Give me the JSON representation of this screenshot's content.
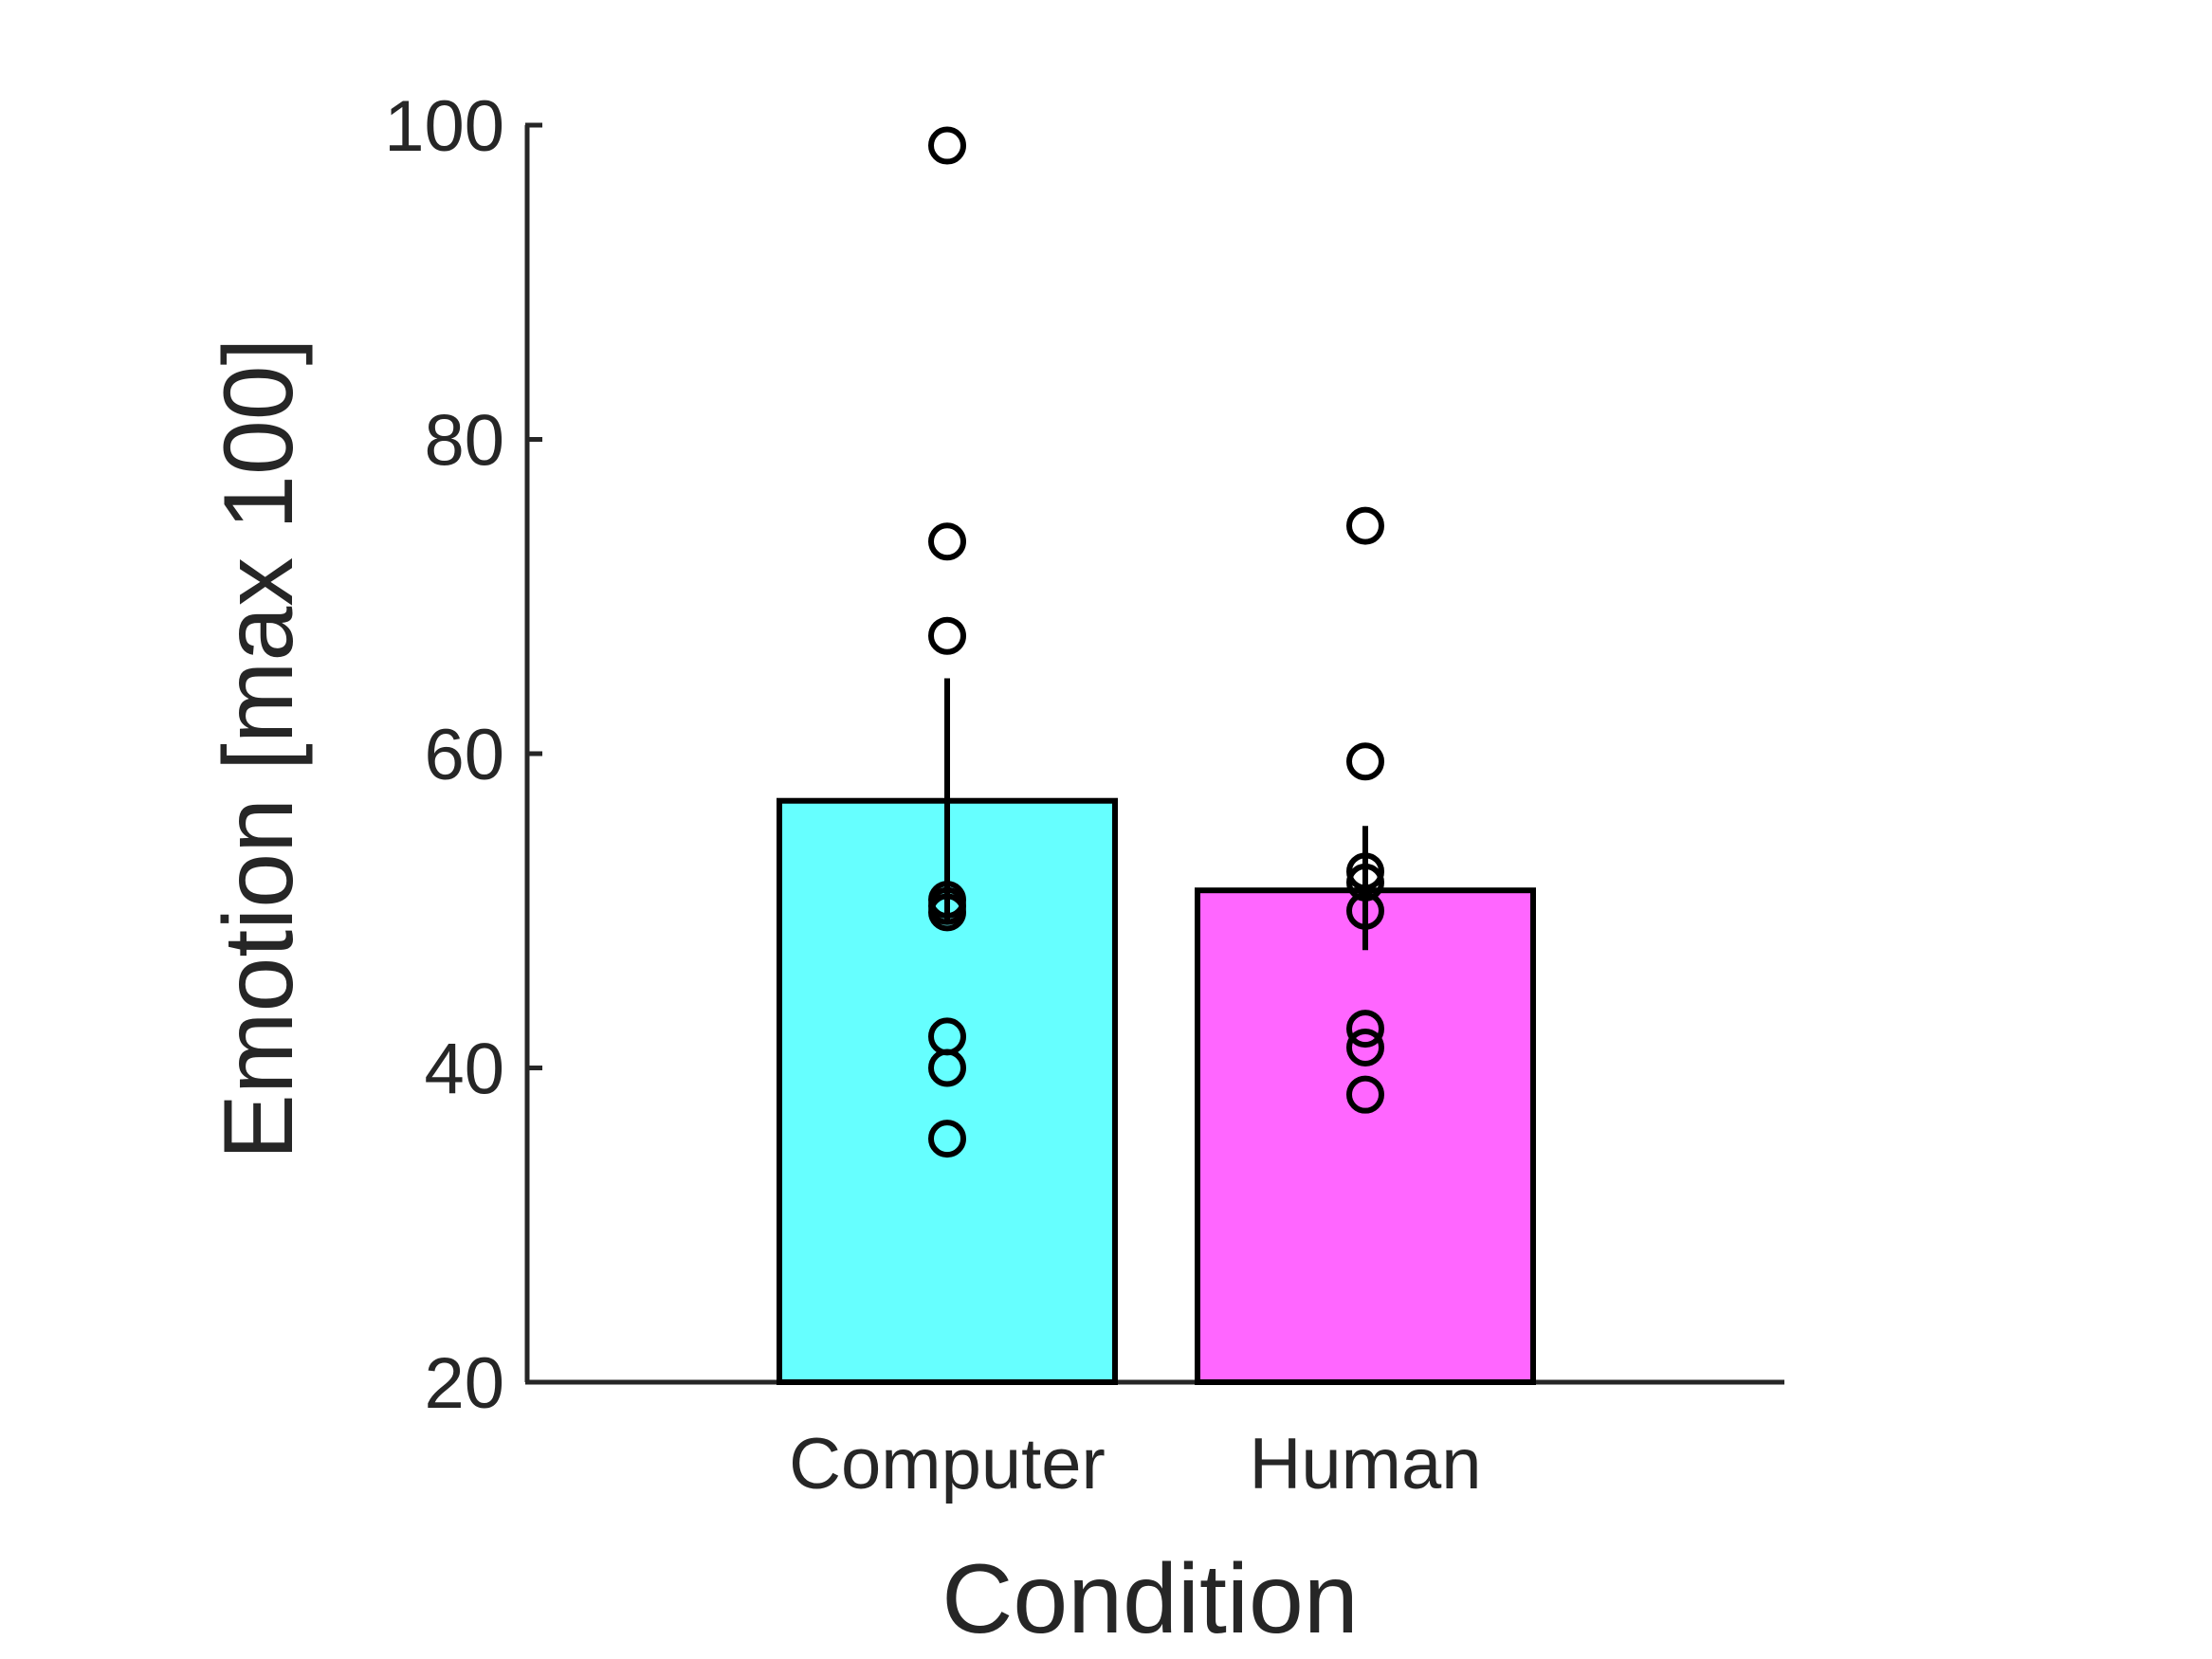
{
  "chart_data": {
    "type": "bar",
    "xlabel": "Condition",
    "ylabel": "Emotion [max 100]",
    "ylim": [
      20,
      100
    ],
    "yticks": [
      20,
      40,
      60,
      80,
      100
    ],
    "grid": false,
    "categories": [
      "Computer",
      "Human"
    ],
    "values": [
      57,
      51.3
    ],
    "error_bars": [
      {
        "lower": 49.2,
        "upper": 64.8
      },
      {
        "lower": 47.5,
        "upper": 55.4
      }
    ],
    "bar_colors": [
      "#66ffff",
      "#ff66ff"
    ],
    "points": [
      [
        98.7,
        73.5,
        67.5,
        50.7,
        50.3,
        49.9,
        42.0,
        40.0,
        35.5
      ],
      [
        74.5,
        59.5,
        52.5,
        51.8,
        50.0,
        42.5,
        41.3,
        38.3
      ]
    ]
  }
}
